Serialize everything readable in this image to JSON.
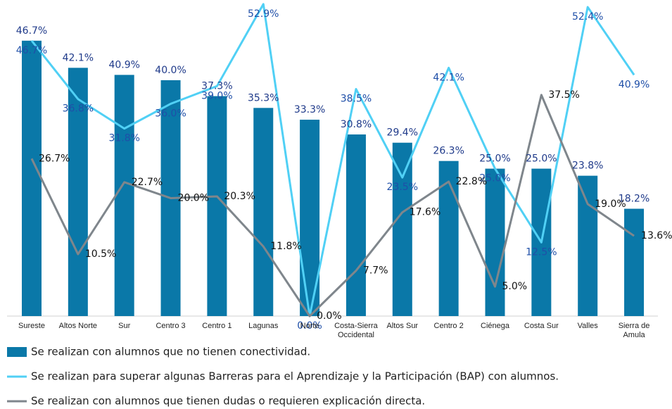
{
  "chart_data": {
    "type": "bar",
    "categories": [
      "Sureste",
      "Altos Norte",
      "Sur",
      "Centro 3",
      "Centro 1",
      "Lagunas",
      "Norte",
      "Costa-Sierra Occidental",
      "Altos Sur",
      "Centro 2",
      "Ciénega",
      "Costa Sur",
      "Valles",
      "Sierra de Amula"
    ],
    "ylim": [
      0,
      53.6
    ],
    "series": [
      {
        "name": "Se realizan con alumnos que no tienen conectividad.",
        "type": "bar",
        "color": "#0a78a8",
        "values": [
          46.7,
          42.1,
          40.9,
          40.0,
          37.3,
          35.3,
          33.3,
          30.8,
          29.4,
          26.3,
          25.0,
          25.0,
          23.8,
          18.2
        ],
        "value_labels": [
          "46.7%",
          "42.1%",
          "40.9%",
          "40.0%",
          "37.3%",
          "35.3%",
          "33.3%",
          "30.8%",
          "29.4%",
          "26.3%",
          "25.0%",
          "25.0%",
          "23.8%",
          "18.2%"
        ]
      },
      {
        "name": "Se realizan para superar algunas Barreras para el Aprendizaje y la Participación (BAP) con alumnos.",
        "type": "line",
        "color": "#50d0f5",
        "values": [
          46.7,
          36.8,
          31.8,
          36.0,
          39.0,
          52.9,
          0.0,
          38.5,
          23.5,
          42.1,
          25.0,
          12.5,
          52.4,
          40.9
        ],
        "value_labels": [
          "46.7%",
          "36.8%",
          "31.8%",
          "36.0%",
          "39.0%",
          "52.9%",
          "0.0%",
          "38.5%",
          "23.5%",
          "42.1%",
          "25.0%",
          "12.5%",
          "52.4%",
          "40.9%"
        ]
      },
      {
        "name": "Se realizan con alumnos que tienen dudas o requieren explicación directa.",
        "type": "line",
        "color": "#7f868c",
        "values": [
          26.7,
          10.5,
          22.7,
          20.0,
          20.3,
          11.8,
          0.0,
          7.7,
          17.6,
          22.8,
          5.0,
          37.5,
          19.0,
          13.6
        ],
        "value_labels": [
          "26.7%",
          "10.5%",
          "22.7%",
          "20.0%",
          "20.3%",
          "11.8%",
          "0.0%",
          "7.7%",
          "17.6%",
          "22.8%",
          "5.0%",
          "37.5%",
          "19.0%",
          "13.6%"
        ]
      }
    ]
  }
}
